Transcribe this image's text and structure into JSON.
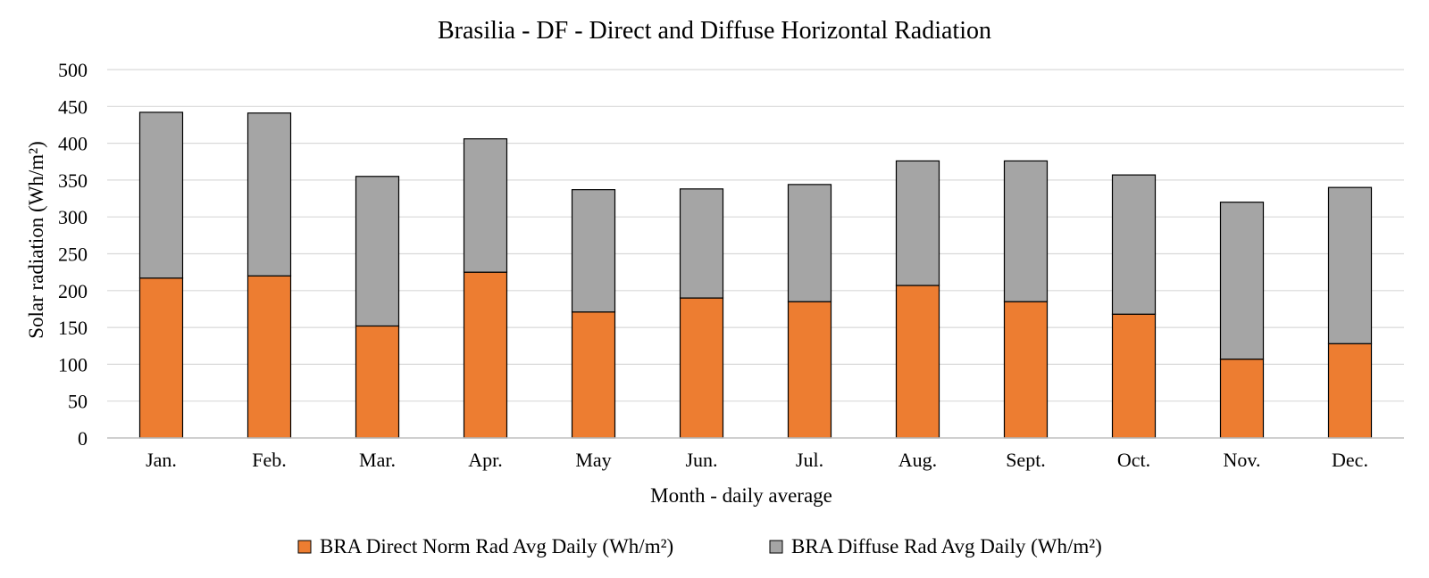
{
  "chart_data": {
    "type": "bar",
    "stacked": true,
    "title": "Brasilia - DF - Direct and Diffuse Horizontal Radiation",
    "xlabel": "Month - daily average",
    "ylabel": "Solar radiation (Wh/m²)",
    "categories": [
      "Jan.",
      "Feb.",
      "Mar.",
      "Apr.",
      "May",
      "Jun.",
      "Jul.",
      "Aug.",
      "Sept.",
      "Oct.",
      "Nov.",
      "Dec."
    ],
    "series": [
      {
        "name": "BRA Direct Norm Rad Avg Daily (Wh/m²)",
        "color": "#ED7D31",
        "values": [
          217,
          220,
          152,
          225,
          171,
          190,
          185,
          207,
          185,
          168,
          107,
          128
        ]
      },
      {
        "name": "BRA Diffuse Rad Avg Daily (Wh/m²)",
        "color": "#A5A5A5",
        "values": [
          225,
          221,
          203,
          181,
          166,
          148,
          159,
          169,
          191,
          189,
          213,
          212
        ]
      }
    ],
    "ylim": [
      0,
      500
    ],
    "yticks": [
      0,
      50,
      100,
      150,
      200,
      250,
      300,
      350,
      400,
      450,
      500
    ],
    "grid": true,
    "legend_position": "bottom"
  }
}
